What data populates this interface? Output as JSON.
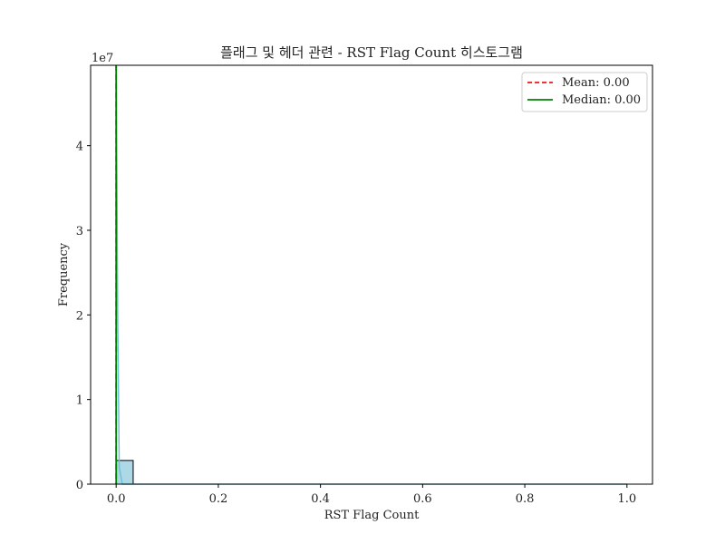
{
  "chart_data": {
    "type": "bar",
    "title": "플래그 및 헤더 관련 - RST Flag Count 히스토그램",
    "xlabel": "RST Flag Count",
    "ylabel": "Frequency",
    "y_offset_label": "1e7",
    "xlim": [
      -0.05,
      1.05
    ],
    "ylim": [
      0,
      4.95
    ],
    "y_unit_multiplier": 10000000,
    "x_ticks": [
      0.0,
      0.2,
      0.4,
      0.6,
      0.8,
      1.0
    ],
    "x_tick_labels": [
      "0.0",
      "0.2",
      "0.4",
      "0.6",
      "0.8",
      "1.0"
    ],
    "y_ticks": [
      0,
      1,
      2,
      3,
      4
    ],
    "y_tick_labels": [
      "0",
      "1",
      "2",
      "3",
      "4"
    ],
    "bins": [
      {
        "x0": 0.0,
        "x1": 0.0333,
        "value": 0.28
      },
      {
        "x0": 0.9667,
        "x1": 1.0,
        "value": 0.0
      }
    ],
    "kde_curve": [
      [
        0.0,
        4.95
      ],
      [
        0.003,
        2.0
      ],
      [
        0.006,
        0.2
      ],
      [
        0.012,
        0.0
      ],
      [
        1.0,
        0.0
      ]
    ],
    "mean": {
      "label": "Mean: 0.00",
      "value": 0.0,
      "color": "#e41a1c"
    },
    "median": {
      "label": "Median: 0.00",
      "value": 0.0,
      "color": "#008000"
    },
    "bar_color": "#add8e6",
    "kde_color": "#6fc0dc",
    "legend_position": "top-right",
    "grid": false
  }
}
